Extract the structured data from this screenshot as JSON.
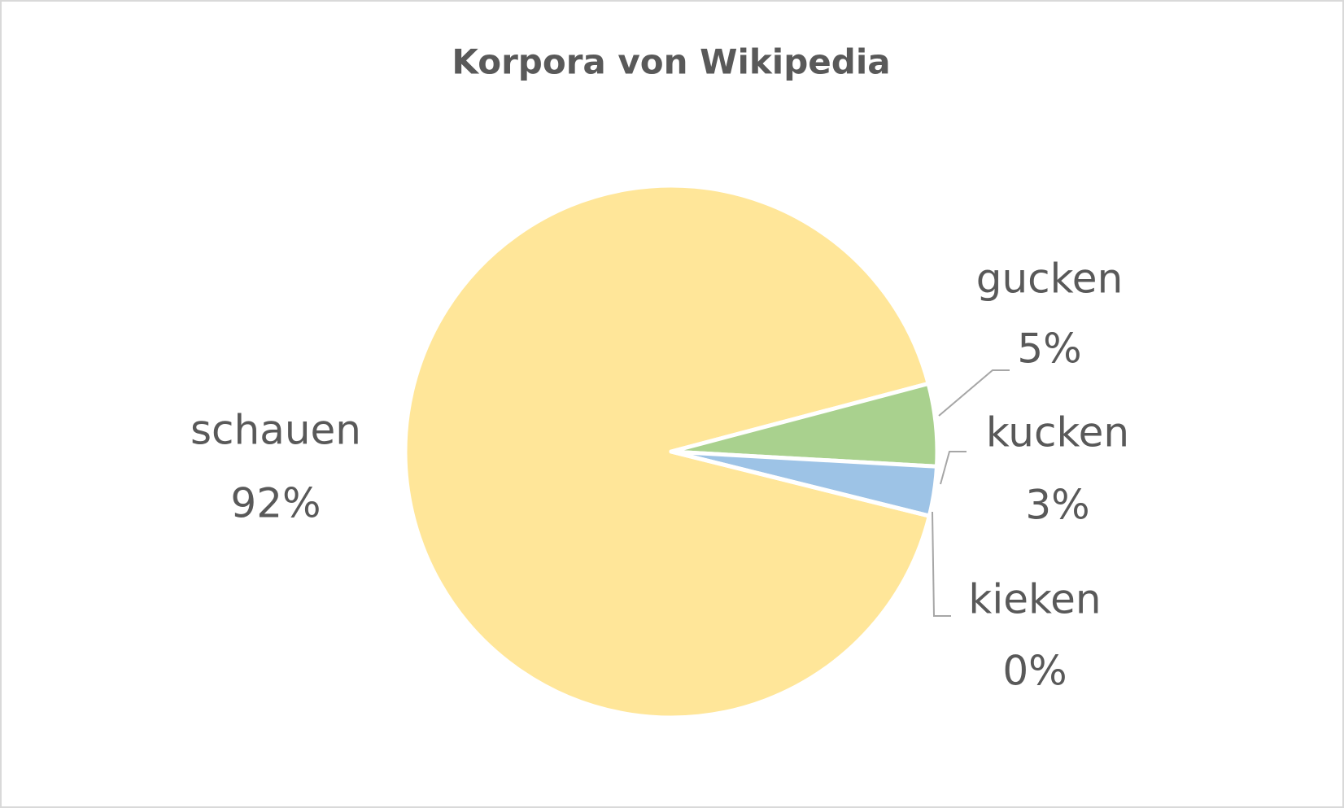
{
  "chart_data": {
    "type": "pie",
    "title": "Korpora von Wikipedia",
    "categories": [
      "schauen",
      "gucken",
      "kucken",
      "kieken"
    ],
    "values": [
      92,
      5,
      3,
      0
    ],
    "value_labels": [
      "92%",
      "5%",
      "3%",
      "0%"
    ],
    "colors": [
      "#FFE699",
      "#A9D18E",
      "#9DC3E6",
      "#F4B183"
    ]
  }
}
